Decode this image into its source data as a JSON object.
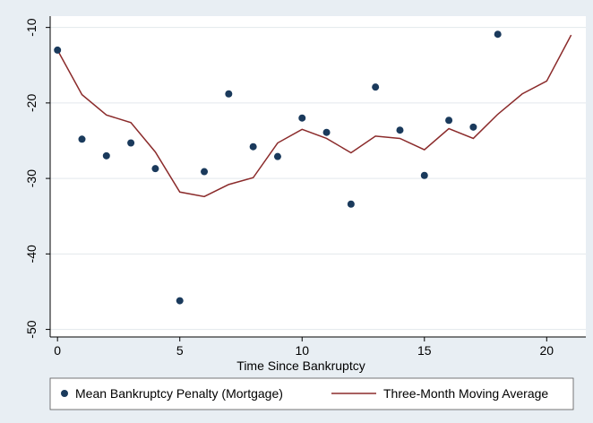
{
  "chart_data": {
    "type": "scatter",
    "title": "",
    "xlabel": "Time Since Bankruptcy",
    "ylabel": "",
    "xlim": [
      -0.3,
      21.6
    ],
    "ylim": [
      -51,
      -8.5
    ],
    "x_ticks": [
      0,
      5,
      10,
      15,
      20
    ],
    "x_tick_labels": [
      "0",
      "5",
      "10",
      "15",
      "20"
    ],
    "y_ticks": [
      -50,
      -40,
      -30,
      -20,
      -10
    ],
    "y_tick_labels": [
      "-50",
      "-40",
      "-30",
      "-20",
      "-10"
    ],
    "grid": "horizontal",
    "legend_position": "bottom",
    "series": [
      {
        "name": "Mean Bankruptcy Penalty (Mortgage)",
        "type": "scatter",
        "color": "#1a3a5c",
        "points": [
          [
            0,
            -13.0
          ],
          [
            1,
            -24.8
          ],
          [
            2,
            -27.0
          ],
          [
            3,
            -25.3
          ],
          [
            4,
            -28.7
          ],
          [
            5,
            -46.2
          ],
          [
            6,
            -29.1
          ],
          [
            7,
            -18.8
          ],
          [
            8,
            -25.8
          ],
          [
            9,
            -27.1
          ],
          [
            10,
            -22.0
          ],
          [
            11,
            -23.9
          ],
          [
            12,
            -33.4
          ],
          [
            13,
            -17.9
          ],
          [
            14,
            -23.6
          ],
          [
            15,
            -29.6
          ],
          [
            16,
            -22.3
          ],
          [
            17,
            -23.2
          ],
          [
            18,
            -10.9
          ]
        ]
      },
      {
        "name": "Three-Month Moving Average",
        "type": "line",
        "color": "#8b2b2b",
        "points": [
          [
            0,
            -13.0
          ],
          [
            1,
            -18.9
          ],
          [
            2,
            -21.6
          ],
          [
            3,
            -22.6
          ],
          [
            4,
            -26.5
          ],
          [
            5,
            -31.8
          ],
          [
            6,
            -32.4
          ],
          [
            7,
            -30.8
          ],
          [
            8,
            -29.9
          ],
          [
            9,
            -25.3
          ],
          [
            10,
            -23.5
          ],
          [
            11,
            -24.7
          ],
          [
            12,
            -26.6
          ],
          [
            13,
            -24.4
          ],
          [
            14,
            -24.7
          ],
          [
            15,
            -26.2
          ],
          [
            16,
            -23.4
          ],
          [
            17,
            -24.7
          ],
          [
            18,
            -21.5
          ],
          [
            19,
            -18.8
          ],
          [
            20,
            -17.1
          ],
          [
            21,
            -11.0
          ]
        ]
      }
    ]
  }
}
